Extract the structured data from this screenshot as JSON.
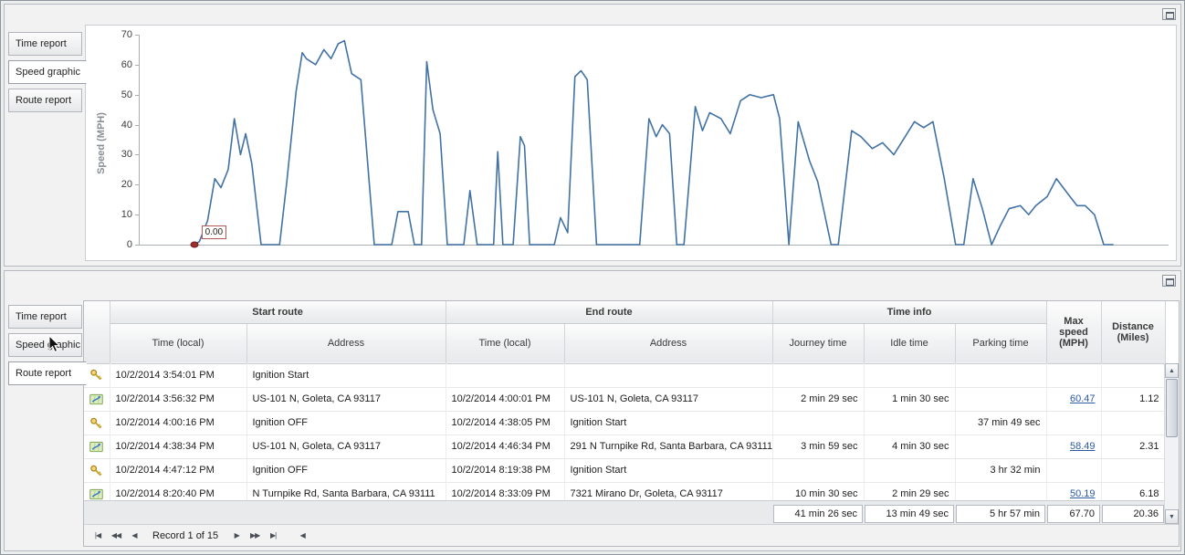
{
  "panels": {
    "top": {
      "tabs": [
        "Time report",
        "Speed graphic",
        "Route report"
      ],
      "active_tab": "Speed graphic"
    },
    "bottom": {
      "tabs": [
        "Time report",
        "Speed graphic",
        "Route report"
      ],
      "active_tab": "Route report"
    }
  },
  "chart_data": {
    "type": "line",
    "title": "",
    "ylabel": "Speed (MPH)",
    "ylim": [
      0,
      70
    ],
    "yticks": [
      0,
      10,
      20,
      30,
      40,
      50,
      60,
      70
    ],
    "grid": false,
    "line_color": "#4272a4",
    "start_marker": {
      "label": "0.00",
      "value": 0,
      "x_pct": 5.3,
      "color": "#9e2f2f"
    },
    "series": [
      {
        "name": "Speed (MPH)",
        "points": [
          [
            5.3,
            0
          ],
          [
            5.8,
            1
          ],
          [
            6.6,
            8
          ],
          [
            7.3,
            22
          ],
          [
            7.9,
            19
          ],
          [
            8.6,
            25
          ],
          [
            9.2,
            42
          ],
          [
            9.8,
            30
          ],
          [
            10.3,
            37
          ],
          [
            10.9,
            27
          ],
          [
            11.8,
            0
          ],
          [
            13.6,
            0
          ],
          [
            14.3,
            21
          ],
          [
            15.2,
            51
          ],
          [
            15.8,
            64
          ],
          [
            16.2,
            62
          ],
          [
            17.1,
            60
          ],
          [
            17.9,
            65
          ],
          [
            18.6,
            62
          ],
          [
            19.3,
            67
          ],
          [
            19.9,
            68
          ],
          [
            20.6,
            57
          ],
          [
            21.5,
            55
          ],
          [
            22.8,
            0
          ],
          [
            24.5,
            0
          ],
          [
            25.1,
            11
          ],
          [
            26.1,
            11
          ],
          [
            26.7,
            0
          ],
          [
            27.4,
            0
          ],
          [
            27.9,
            61
          ],
          [
            28.5,
            45
          ],
          [
            29.2,
            37
          ],
          [
            29.9,
            0
          ],
          [
            31.5,
            0
          ],
          [
            32.1,
            18
          ],
          [
            32.8,
            0
          ],
          [
            34.4,
            0
          ],
          [
            34.8,
            31
          ],
          [
            35.3,
            0
          ],
          [
            36.3,
            0
          ],
          [
            37.0,
            36
          ],
          [
            37.4,
            33
          ],
          [
            37.9,
            0
          ],
          [
            40.3,
            0
          ],
          [
            40.9,
            9
          ],
          [
            41.6,
            4
          ],
          [
            42.3,
            56
          ],
          [
            42.9,
            58
          ],
          [
            43.5,
            55
          ],
          [
            44.4,
            0
          ],
          [
            48.6,
            0
          ],
          [
            49.5,
            42
          ],
          [
            50.2,
            36
          ],
          [
            50.8,
            40
          ],
          [
            51.5,
            37
          ],
          [
            52.2,
            0
          ],
          [
            52.9,
            0
          ],
          [
            54.0,
            46
          ],
          [
            54.7,
            38
          ],
          [
            55.4,
            44
          ],
          [
            56.5,
            42
          ],
          [
            57.4,
            37
          ],
          [
            58.4,
            48
          ],
          [
            59.3,
            50
          ],
          [
            60.4,
            49
          ],
          [
            61.6,
            50
          ],
          [
            62.2,
            42
          ],
          [
            63.1,
            0
          ],
          [
            64.0,
            41
          ],
          [
            65.1,
            28
          ],
          [
            65.9,
            21
          ],
          [
            67.2,
            0
          ],
          [
            67.9,
            0
          ],
          [
            69.2,
            38
          ],
          [
            70.1,
            36
          ],
          [
            71.2,
            32
          ],
          [
            72.2,
            34
          ],
          [
            73.3,
            30
          ],
          [
            74.4,
            36
          ],
          [
            75.3,
            41
          ],
          [
            76.2,
            39
          ],
          [
            77.1,
            41
          ],
          [
            78.2,
            22
          ],
          [
            79.3,
            0
          ],
          [
            80.1,
            0
          ],
          [
            81.0,
            22
          ],
          [
            81.9,
            12
          ],
          [
            82.8,
            0
          ],
          [
            83.6,
            6
          ],
          [
            84.5,
            12
          ],
          [
            85.6,
            13
          ],
          [
            86.4,
            10
          ],
          [
            87.1,
            13
          ],
          [
            88.2,
            16
          ],
          [
            89.1,
            22
          ],
          [
            90.2,
            17
          ],
          [
            91.1,
            13
          ],
          [
            91.9,
            13
          ],
          [
            92.8,
            10
          ],
          [
            93.7,
            0
          ],
          [
            94.6,
            0
          ]
        ]
      }
    ]
  },
  "grid": {
    "column_groups": [
      "Start route",
      "End route",
      "Time info"
    ],
    "columns": [
      "Time (local)",
      "Address",
      "Time (local)",
      "Address",
      "Journey time",
      "Idle time",
      "Parking time",
      "Max speed (MPH)",
      "Distance (Miles)"
    ],
    "rows": [
      {
        "icon": "key",
        "start_time": "10/2/2014 3:54:01 PM",
        "start_address": "Ignition Start",
        "end_time": "",
        "end_address": "",
        "journey_time": "",
        "idle_time": "",
        "parking_time": "",
        "max_speed": "",
        "distance": ""
      },
      {
        "icon": "route",
        "start_time": "10/2/2014 3:56:32 PM",
        "start_address": "US-101 N, Goleta, CA 93117",
        "end_time": "10/2/2014 4:00:01 PM",
        "end_address": "US-101 N, Goleta, CA 93117",
        "journey_time": "2 min 29 sec",
        "idle_time": "1 min 30 sec",
        "parking_time": "",
        "max_speed": "60.47",
        "distance": "1.12"
      },
      {
        "icon": "key",
        "start_time": "10/2/2014 4:00:16 PM",
        "start_address": "Ignition OFF",
        "end_time": "10/2/2014 4:38:05 PM",
        "end_address": "Ignition Start",
        "journey_time": "",
        "idle_time": "",
        "parking_time": "37 min 49 sec",
        "max_speed": "",
        "distance": ""
      },
      {
        "icon": "route",
        "start_time": "10/2/2014 4:38:34 PM",
        "start_address": "US-101 N, Goleta, CA 93117",
        "end_time": "10/2/2014 4:46:34 PM",
        "end_address": "291 N Turnpike Rd, Santa Barbara, CA 93111",
        "journey_time": "3 min 59 sec",
        "idle_time": "4 min 30 sec",
        "parking_time": "",
        "max_speed": "58.49",
        "distance": "2.31"
      },
      {
        "icon": "key",
        "start_time": "10/2/2014 4:47:12 PM",
        "start_address": "Ignition OFF",
        "end_time": "10/2/2014 8:19:38 PM",
        "end_address": "Ignition Start",
        "journey_time": "",
        "idle_time": "",
        "parking_time": "3 hr 32 min",
        "max_speed": "",
        "distance": ""
      },
      {
        "icon": "route",
        "start_time": "10/2/2014 8:20:40 PM",
        "start_address": "N Turnpike Rd, Santa Barbara, CA 93111",
        "end_time": "10/2/2014 8:33:09 PM",
        "end_address": "7321 Mirano Dr, Goleta, CA 93117",
        "journey_time": "10 min 30 sec",
        "idle_time": "2 min 29 sec",
        "parking_time": "",
        "max_speed": "50.19",
        "distance": "6.18"
      }
    ],
    "summary": {
      "journey_time": "41 min 26 sec",
      "idle_time": "13 min 49 sec",
      "parking_time": "5 hr 57 min",
      "max_speed": "67.70",
      "distance": "20.36"
    },
    "pager": {
      "record_text": "Record 1 of 15",
      "buttons_left": [
        {
          "name": "first-record-button",
          "glyph": "|◀"
        },
        {
          "name": "previous-page-button",
          "glyph": "◀◀"
        },
        {
          "name": "previous-record-button",
          "glyph": "◀"
        }
      ],
      "buttons_right": [
        {
          "name": "next-record-button",
          "glyph": "▶"
        },
        {
          "name": "next-page-button",
          "glyph": "▶▶"
        },
        {
          "name": "last-record-button",
          "glyph": "▶|"
        }
      ],
      "hscroll_button": {
        "name": "hscroll-left-button",
        "glyph": "◀"
      }
    }
  }
}
